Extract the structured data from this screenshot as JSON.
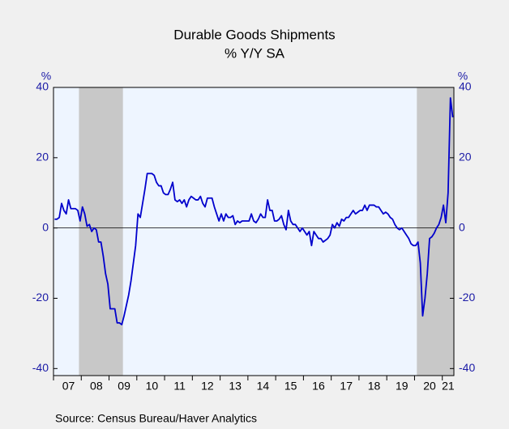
{
  "chart_data": {
    "type": "line",
    "title": "Durable Goods Shipments",
    "subtitle": "% Y/Y   SA",
    "y_label": "%",
    "source": "Source:  Census Bureau/Haver Analytics",
    "categories": [
      null,
      null,
      null,
      null,
      null,
      null,
      "07",
      null,
      null,
      null,
      null,
      null,
      null,
      null,
      null,
      null,
      null,
      null,
      "08",
      null,
      null,
      null,
      null,
      null,
      null,
      null,
      null,
      null,
      null,
      null,
      "09",
      null,
      null,
      null,
      null,
      null,
      null,
      null,
      null,
      null,
      null,
      null,
      "10",
      null,
      null,
      null,
      null,
      null,
      null,
      null,
      null,
      null,
      null,
      null,
      "11",
      null,
      null,
      null,
      null,
      null,
      null,
      null,
      null,
      null,
      null,
      null,
      "12",
      null,
      null,
      null,
      null,
      null,
      null,
      null,
      null,
      null,
      null,
      null,
      "13",
      null,
      null,
      null,
      null,
      null,
      null,
      null,
      null,
      null,
      null,
      null,
      "14",
      null,
      null,
      null,
      null,
      null,
      null,
      null,
      null,
      null,
      null,
      null,
      "15",
      null,
      null,
      null,
      null,
      null,
      null,
      null,
      null,
      null,
      null,
      null,
      "16",
      null,
      null,
      null,
      null,
      null,
      null,
      null,
      null,
      null,
      null,
      null,
      "17",
      null,
      null,
      null,
      null,
      null,
      null,
      null,
      null,
      null,
      null,
      null,
      "18",
      null,
      null,
      null,
      null,
      null,
      null,
      null,
      null,
      null,
      null,
      null,
      "19",
      null,
      null,
      null,
      null,
      null,
      null,
      null,
      null,
      null,
      null,
      null,
      "20",
      null,
      null,
      null,
      null,
      null,
      null,
      null,
      "21",
      null,
      null
    ],
    "series": [
      {
        "name": "Durable Goods Shipments",
        "color": "#0000cc",
        "values": [
          2.5,
          2.5,
          3,
          7,
          5,
          4,
          8,
          5.5,
          5.5,
          5.5,
          5,
          2,
          6,
          4,
          0.5,
          1,
          -1,
          0,
          -0.5,
          -4,
          -4,
          -8,
          -13,
          -16,
          -23,
          -23,
          -23,
          -27,
          -27,
          -27.5,
          -25,
          -22,
          -19,
          -15,
          -10,
          -5,
          4,
          3,
          7,
          11,
          15.5,
          15.5,
          15.5,
          15,
          13,
          12,
          12,
          10,
          9.5,
          9.5,
          11,
          13,
          8,
          7.5,
          8,
          7,
          8,
          6,
          8,
          9,
          8.5,
          8,
          8,
          9,
          7,
          6,
          8.5,
          8.5,
          8.5,
          6,
          4,
          2,
          4,
          2,
          4,
          3,
          3,
          3.5,
          1,
          2,
          1.5,
          2,
          2,
          2,
          2,
          4,
          2,
          1.5,
          2.5,
          4,
          3,
          3,
          8,
          5,
          5,
          2,
          2,
          2.5,
          3.5,
          1,
          -0.5,
          5,
          2,
          1,
          1,
          0,
          -1,
          0,
          -1,
          -2,
          -1,
          -5,
          -1,
          -2,
          -3,
          -3,
          -4,
          -3.5,
          -3,
          -2,
          1,
          0,
          1.5,
          0.5,
          2.5,
          2,
          3,
          3,
          4,
          5,
          4,
          4.5,
          5,
          5,
          6.5,
          5,
          6.5,
          6.5,
          6.5,
          6,
          6,
          5,
          4,
          4.5,
          4,
          3,
          2.5,
          1,
          0,
          -0.5,
          0,
          -1,
          -2,
          -3,
          -4.5,
          -5,
          -5,
          -4,
          -10,
          -25,
          -20,
          -13,
          -3,
          -2.5,
          -1.5,
          0,
          1,
          3,
          6.5,
          1.5,
          10,
          37,
          31.5
        ]
      }
    ],
    "ylim": [
      -42,
      40
    ],
    "yticks": [
      40,
      20,
      0,
      -20,
      -40
    ]
  }
}
